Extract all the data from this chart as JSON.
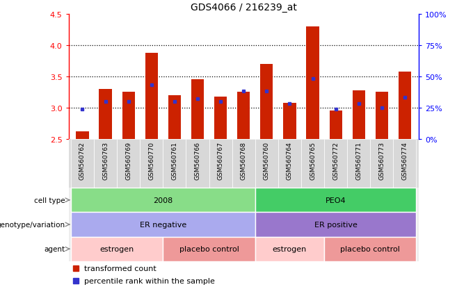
{
  "title": "GDS4066 / 216239_at",
  "samples": [
    "GSM560762",
    "GSM560763",
    "GSM560769",
    "GSM560770",
    "GSM560761",
    "GSM560766",
    "GSM560767",
    "GSM560768",
    "GSM560760",
    "GSM560764",
    "GSM560765",
    "GSM560772",
    "GSM560771",
    "GSM560773",
    "GSM560774"
  ],
  "red_values": [
    2.62,
    3.3,
    3.25,
    3.88,
    3.2,
    3.45,
    3.17,
    3.25,
    3.7,
    3.07,
    4.3,
    2.95,
    3.28,
    3.25,
    3.57
  ],
  "blue_pct": [
    24,
    30,
    30,
    43,
    30,
    32,
    30,
    38,
    38,
    28,
    48,
    24,
    28,
    25,
    33
  ],
  "ylim_left": [
    2.5,
    4.5
  ],
  "left_ticks": [
    2.5,
    3.0,
    3.5,
    4.0,
    4.5
  ],
  "right_ticks": [
    0,
    25,
    50,
    75,
    100
  ],
  "right_tick_labels": [
    "0%",
    "25%",
    "50%",
    "75%",
    "100%"
  ],
  "bar_color": "#cc2200",
  "dot_color": "#3333cc",
  "cell_type_labels": [
    "2008",
    "PEO4"
  ],
  "cell_type_colors": [
    "#88dd88",
    "#44cc66"
  ],
  "cell_type_ranges": [
    0,
    8,
    15
  ],
  "genotype_labels": [
    "ER negative",
    "ER positive"
  ],
  "genotype_colors": [
    "#aaaaee",
    "#9977cc"
  ],
  "genotype_ranges": [
    0,
    8,
    15
  ],
  "agent_labels": [
    "estrogen",
    "placebo control",
    "estrogen",
    "placebo control"
  ],
  "agent_colors": [
    "#ffcccc",
    "#ee9999",
    "#ffcccc",
    "#ee9999"
  ],
  "agent_ranges": [
    0,
    4,
    8,
    11,
    15
  ],
  "row_labels": [
    "cell type",
    "genotype/variation",
    "agent"
  ],
  "legend_red": "transformed count",
  "legend_blue": "percentile rank within the sample"
}
